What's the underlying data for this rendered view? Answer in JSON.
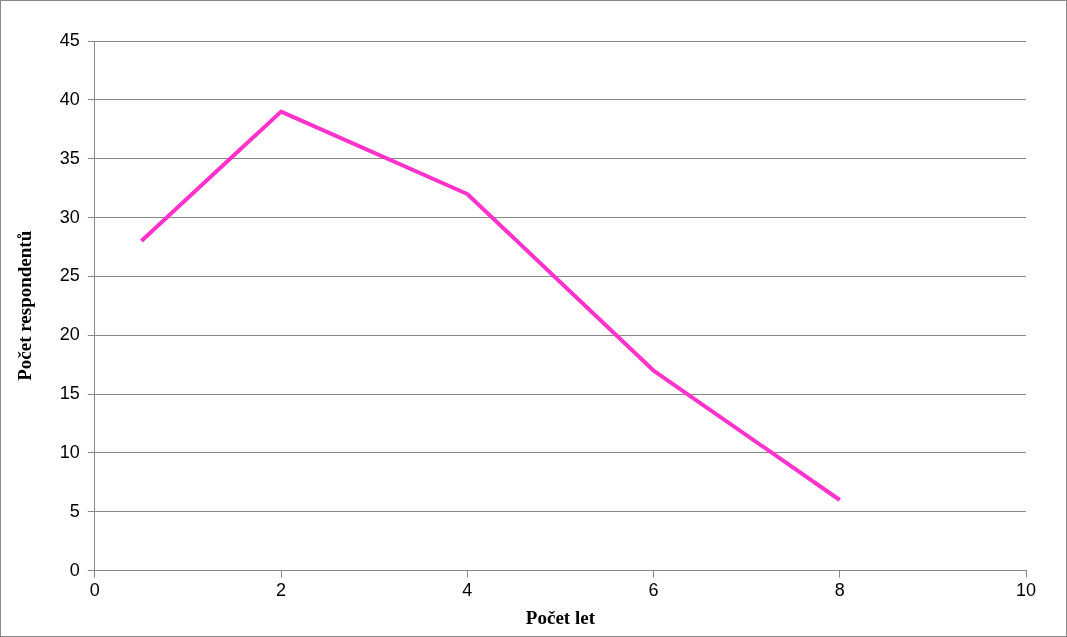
{
  "chart_data": {
    "type": "line",
    "xlabel": "Počet let",
    "ylabel": "Počet respondentů",
    "x": [
      0.5,
      2,
      4,
      6,
      8
    ],
    "series": [
      {
        "color": "#ff33cc",
        "values": [
          28,
          39,
          32,
          17,
          6
        ]
      }
    ],
    "xlim": [
      0,
      10
    ],
    "xticks": [
      0,
      2,
      4,
      6,
      8,
      10
    ],
    "ylim": [
      0,
      45
    ],
    "yticks": [
      0,
      5,
      10,
      15,
      20,
      25,
      30,
      35,
      40,
      45
    ],
    "grid": "y",
    "legend": false,
    "marker": "none",
    "line_style": "solid"
  }
}
